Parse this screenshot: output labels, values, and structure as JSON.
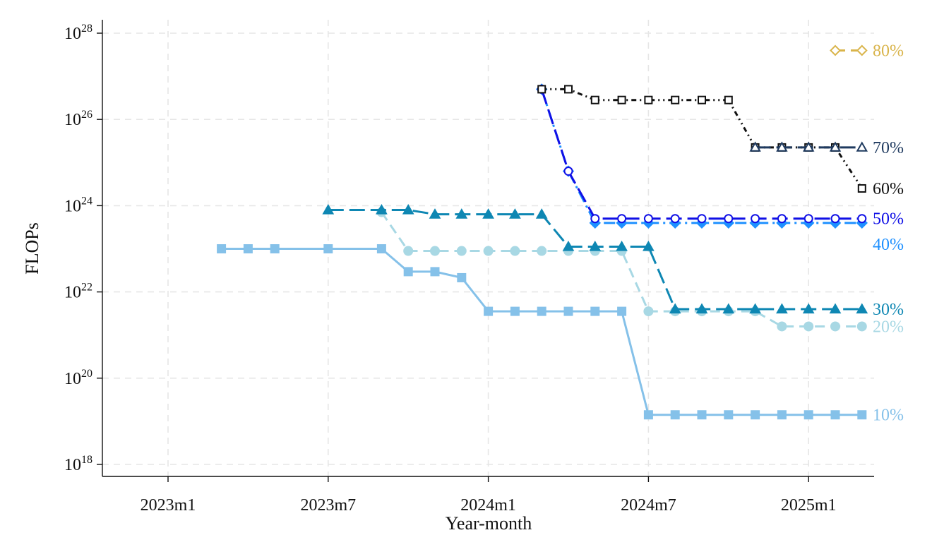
{
  "chart_data": {
    "type": "line",
    "xlabel": "Year-month",
    "ylabel": "FLOPs",
    "xlim": [
      "2022-10",
      "2025-05"
    ],
    "ylim_log10": [
      17.8,
      28.4
    ],
    "y_scale": "log",
    "x_ticks": [
      {
        "value": "2023-01",
        "label": "2023m1"
      },
      {
        "value": "2023-07",
        "label": "2023m7"
      },
      {
        "value": "2024-01",
        "label": "2024m1"
      },
      {
        "value": "2024-07",
        "label": "2024m7"
      },
      {
        "value": "2025-01",
        "label": "2025m1"
      }
    ],
    "y_ticks": [
      {
        "log10": 18,
        "base": "10",
        "exp": "18"
      },
      {
        "log10": 20,
        "base": "10",
        "exp": "20"
      },
      {
        "log10": 22,
        "base": "10",
        "exp": "22"
      },
      {
        "log10": 24,
        "base": "10",
        "exp": "24"
      },
      {
        "log10": 26,
        "base": "10",
        "exp": "26"
      },
      {
        "log10": 28,
        "base": "10",
        "exp": "28"
      }
    ],
    "grid": true,
    "series": [
      {
        "name": "10%",
        "color": "#85c1e9",
        "dash": "solid",
        "marker": "square-filled",
        "points": [
          [
            "2023-03",
            23.0
          ],
          [
            "2023-04",
            23.0
          ],
          [
            "2023-05",
            23.0
          ],
          [
            "2023-07",
            23.0
          ],
          [
            "2023-09",
            23.0
          ],
          [
            "2023-10",
            22.47
          ],
          [
            "2023-11",
            22.47
          ],
          [
            "2023-12",
            22.33
          ],
          [
            "2024-01",
            21.55
          ],
          [
            "2024-02",
            21.55
          ],
          [
            "2024-03",
            21.55
          ],
          [
            "2024-04",
            21.55
          ],
          [
            "2024-05",
            21.55
          ],
          [
            "2024-06",
            21.55
          ],
          [
            "2024-07",
            19.15
          ],
          [
            "2024-08",
            19.15
          ],
          [
            "2024-09",
            19.15
          ],
          [
            "2024-10",
            19.15
          ],
          [
            "2024-11",
            19.15
          ],
          [
            "2024-12",
            19.15
          ],
          [
            "2025-01",
            19.15
          ],
          [
            "2025-02",
            19.15
          ],
          [
            "2025-03",
            19.15
          ]
        ]
      },
      {
        "name": "20%",
        "color": "#a8d8e4",
        "dash": "dash",
        "marker": "circle-filled",
        "points": [
          [
            "2023-09",
            23.85
          ],
          [
            "2023-10",
            22.95
          ],
          [
            "2023-11",
            22.95
          ],
          [
            "2023-12",
            22.95
          ],
          [
            "2024-01",
            22.95
          ],
          [
            "2024-02",
            22.95
          ],
          [
            "2024-03",
            22.95
          ],
          [
            "2024-04",
            22.95
          ],
          [
            "2024-05",
            22.95
          ],
          [
            "2024-06",
            22.95
          ],
          [
            "2024-07",
            21.55
          ],
          [
            "2024-08",
            21.55
          ],
          [
            "2024-09",
            21.55
          ],
          [
            "2024-10",
            21.55
          ],
          [
            "2024-11",
            21.55
          ],
          [
            "2024-12",
            21.2
          ],
          [
            "2025-01",
            21.2
          ],
          [
            "2025-02",
            21.2
          ],
          [
            "2025-03",
            21.2
          ]
        ]
      },
      {
        "name": "30%",
        "color": "#0e87b3",
        "dash": "longdash",
        "marker": "triangle-filled",
        "points": [
          [
            "2023-07",
            23.9
          ],
          [
            "2023-09",
            23.9
          ],
          [
            "2023-10",
            23.9
          ],
          [
            "2023-11",
            23.8
          ],
          [
            "2023-12",
            23.8
          ],
          [
            "2024-01",
            23.8
          ],
          [
            "2024-02",
            23.8
          ],
          [
            "2024-03",
            23.8
          ],
          [
            "2024-04",
            23.05
          ],
          [
            "2024-05",
            23.05
          ],
          [
            "2024-06",
            23.05
          ],
          [
            "2024-07",
            23.05
          ],
          [
            "2024-08",
            21.6
          ],
          [
            "2024-09",
            21.6
          ],
          [
            "2024-10",
            21.6
          ],
          [
            "2024-11",
            21.6
          ],
          [
            "2024-12",
            21.6
          ],
          [
            "2025-01",
            21.6
          ],
          [
            "2025-02",
            21.6
          ],
          [
            "2025-03",
            21.6
          ]
        ]
      },
      {
        "name": "40%",
        "color": "#1e90ff",
        "dash": "dashdot",
        "marker": "diamond-filled",
        "points": [
          [
            "2024-03",
            26.7
          ],
          [
            "2024-04",
            24.8
          ],
          [
            "2024-05",
            23.6
          ],
          [
            "2024-06",
            23.6
          ],
          [
            "2024-07",
            23.6
          ],
          [
            "2024-08",
            23.6
          ],
          [
            "2024-09",
            23.6
          ],
          [
            "2024-10",
            23.6
          ],
          [
            "2024-11",
            23.6
          ],
          [
            "2024-12",
            23.6
          ],
          [
            "2025-01",
            23.6
          ],
          [
            "2025-02",
            23.6
          ],
          [
            "2025-03",
            23.6
          ]
        ]
      },
      {
        "name": "50%",
        "color": "#1010e6",
        "dash": "longdash",
        "marker": "circle-open",
        "points": [
          [
            "2024-03",
            26.7
          ],
          [
            "2024-04",
            24.8
          ],
          [
            "2024-05",
            23.7
          ],
          [
            "2024-06",
            23.7
          ],
          [
            "2024-07",
            23.7
          ],
          [
            "2024-08",
            23.7
          ],
          [
            "2024-09",
            23.7
          ],
          [
            "2024-10",
            23.7
          ],
          [
            "2024-11",
            23.7
          ],
          [
            "2024-12",
            23.7
          ],
          [
            "2025-01",
            23.7
          ],
          [
            "2025-02",
            23.7
          ],
          [
            "2025-03",
            23.7
          ]
        ]
      },
      {
        "name": "60%",
        "color": "#111111",
        "dash": "dashdotdot",
        "marker": "square-open",
        "points": [
          [
            "2024-03",
            26.7
          ],
          [
            "2024-04",
            26.7
          ],
          [
            "2024-05",
            26.45
          ],
          [
            "2024-06",
            26.45
          ],
          [
            "2024-07",
            26.45
          ],
          [
            "2024-08",
            26.45
          ],
          [
            "2024-09",
            26.45
          ],
          [
            "2024-10",
            26.45
          ],
          [
            "2024-11",
            25.35
          ],
          [
            "2024-12",
            25.35
          ],
          [
            "2025-01",
            25.35
          ],
          [
            "2025-02",
            25.35
          ],
          [
            "2025-03",
            24.4
          ]
        ]
      },
      {
        "name": "70%",
        "color": "#1f3a5f",
        "dash": "longdash",
        "marker": "triangle-open",
        "points": [
          [
            "2024-11",
            25.35
          ],
          [
            "2024-12",
            25.35
          ],
          [
            "2025-01",
            25.35
          ],
          [
            "2025-02",
            25.35
          ],
          [
            "2025-03",
            25.35
          ]
        ]
      },
      {
        "name": "80%",
        "color": "#d9b44a",
        "dash": "dash",
        "marker": "diamond-open",
        "points": [
          [
            "2025-02",
            27.6
          ],
          [
            "2025-03",
            27.6
          ]
        ]
      }
    ]
  }
}
